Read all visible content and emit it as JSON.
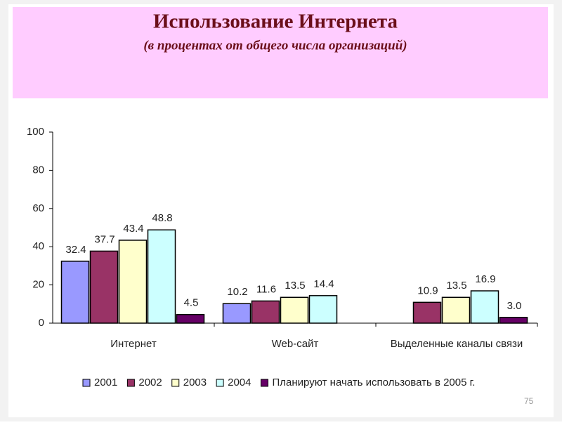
{
  "chart_data": {
    "type": "bar",
    "title": "Использование Интернета",
    "subtitle": "(в процентах от общего числа организаций)",
    "categories": [
      "Интернет",
      "Web-сайт",
      "Выделенные каналы связи"
    ],
    "series": [
      {
        "name": "2001",
        "color": "#9999ff",
        "values": [
          32.4,
          10.2,
          null
        ]
      },
      {
        "name": "2002",
        "color": "#993366",
        "values": [
          37.7,
          11.6,
          10.9
        ]
      },
      {
        "name": "2003",
        "color": "#ffffcc",
        "values": [
          43.4,
          13.5,
          13.5
        ]
      },
      {
        "name": "2004",
        "color": "#ccffff",
        "values": [
          48.8,
          14.4,
          16.9
        ]
      },
      {
        "name": "Планируют начать использовать в 2005 г.",
        "color": "#660066",
        "values": [
          4.5,
          null,
          3
        ],
        "value_labels": [
          "4.5",
          null,
          "3.0"
        ]
      }
    ],
    "ylim": [
      0,
      100
    ],
    "yticks": [
      0,
      20,
      40,
      60,
      80,
      100
    ],
    "grid": false,
    "legend": "bottom"
  },
  "page_number": "75"
}
